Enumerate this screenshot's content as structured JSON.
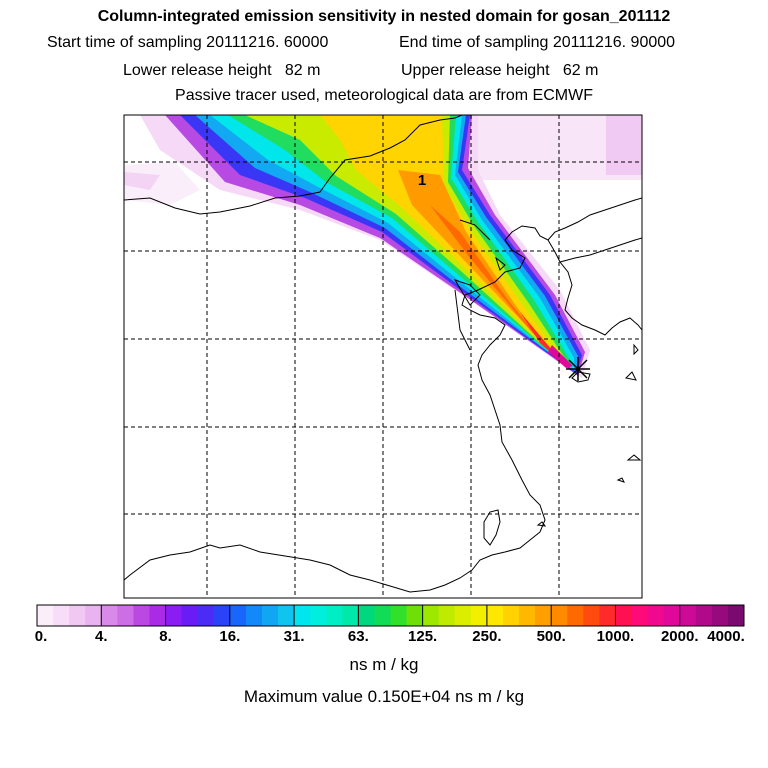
{
  "header": {
    "title": "Column-integrated emission sensitivity in nested domain for gosan_201112",
    "line2_left": "Start time of sampling 20111216. 60000",
    "line2_right": "End time of sampling 20111216. 90000",
    "line3_left": "Lower release height   82 m",
    "line3_right": "Upper release height   62 m",
    "line4": "Passive tracer used, meteorological data are from ECMWF"
  },
  "map": {
    "cluster_label": "1",
    "receptor_marker": "asterisk"
  },
  "colorbar": {
    "labels": [
      "0.",
      "4.",
      "8.",
      "16.",
      "31.",
      "63.",
      "125.",
      "250.",
      "500.",
      "1000.",
      "2000.",
      "4000."
    ],
    "colors": [
      [
        "#fbeefb",
        "#f7ddf7",
        "#f0c8f2",
        "#e9b3ef"
      ],
      [
        "#d98ae8",
        "#cc6fe5",
        "#bb48e2",
        "#a92be6"
      ],
      [
        "#8a1ef2",
        "#6a1cf6",
        "#4a2cf6",
        "#2a43f8"
      ],
      [
        "#1a66fb",
        "#1388f8",
        "#10a6f3",
        "#10c4ef"
      ],
      [
        "#00e6ee",
        "#00eedd",
        "#00eec6",
        "#00e8aa"
      ],
      [
        "#00d880",
        "#10dd55",
        "#30e02a",
        "#6ee008"
      ],
      [
        "#9ee800",
        "#c0ea00",
        "#dcee00",
        "#f2f000"
      ],
      [
        "#ffe800",
        "#ffd200",
        "#ffb800",
        "#ffa000"
      ],
      [
        "#ff8a00",
        "#ff6a00",
        "#ff4a10",
        "#ff2a2a"
      ],
      [
        "#ff1050",
        "#ff0a78",
        "#f0088e",
        "#e0089a"
      ],
      [
        "#cc0a96",
        "#b00a8a",
        "#960a7e",
        "#7a0a70"
      ]
    ],
    "unit": "ns m / kg"
  },
  "footer": {
    "max_value": "Maximum value  0.150E+04 ns m / kg"
  }
}
